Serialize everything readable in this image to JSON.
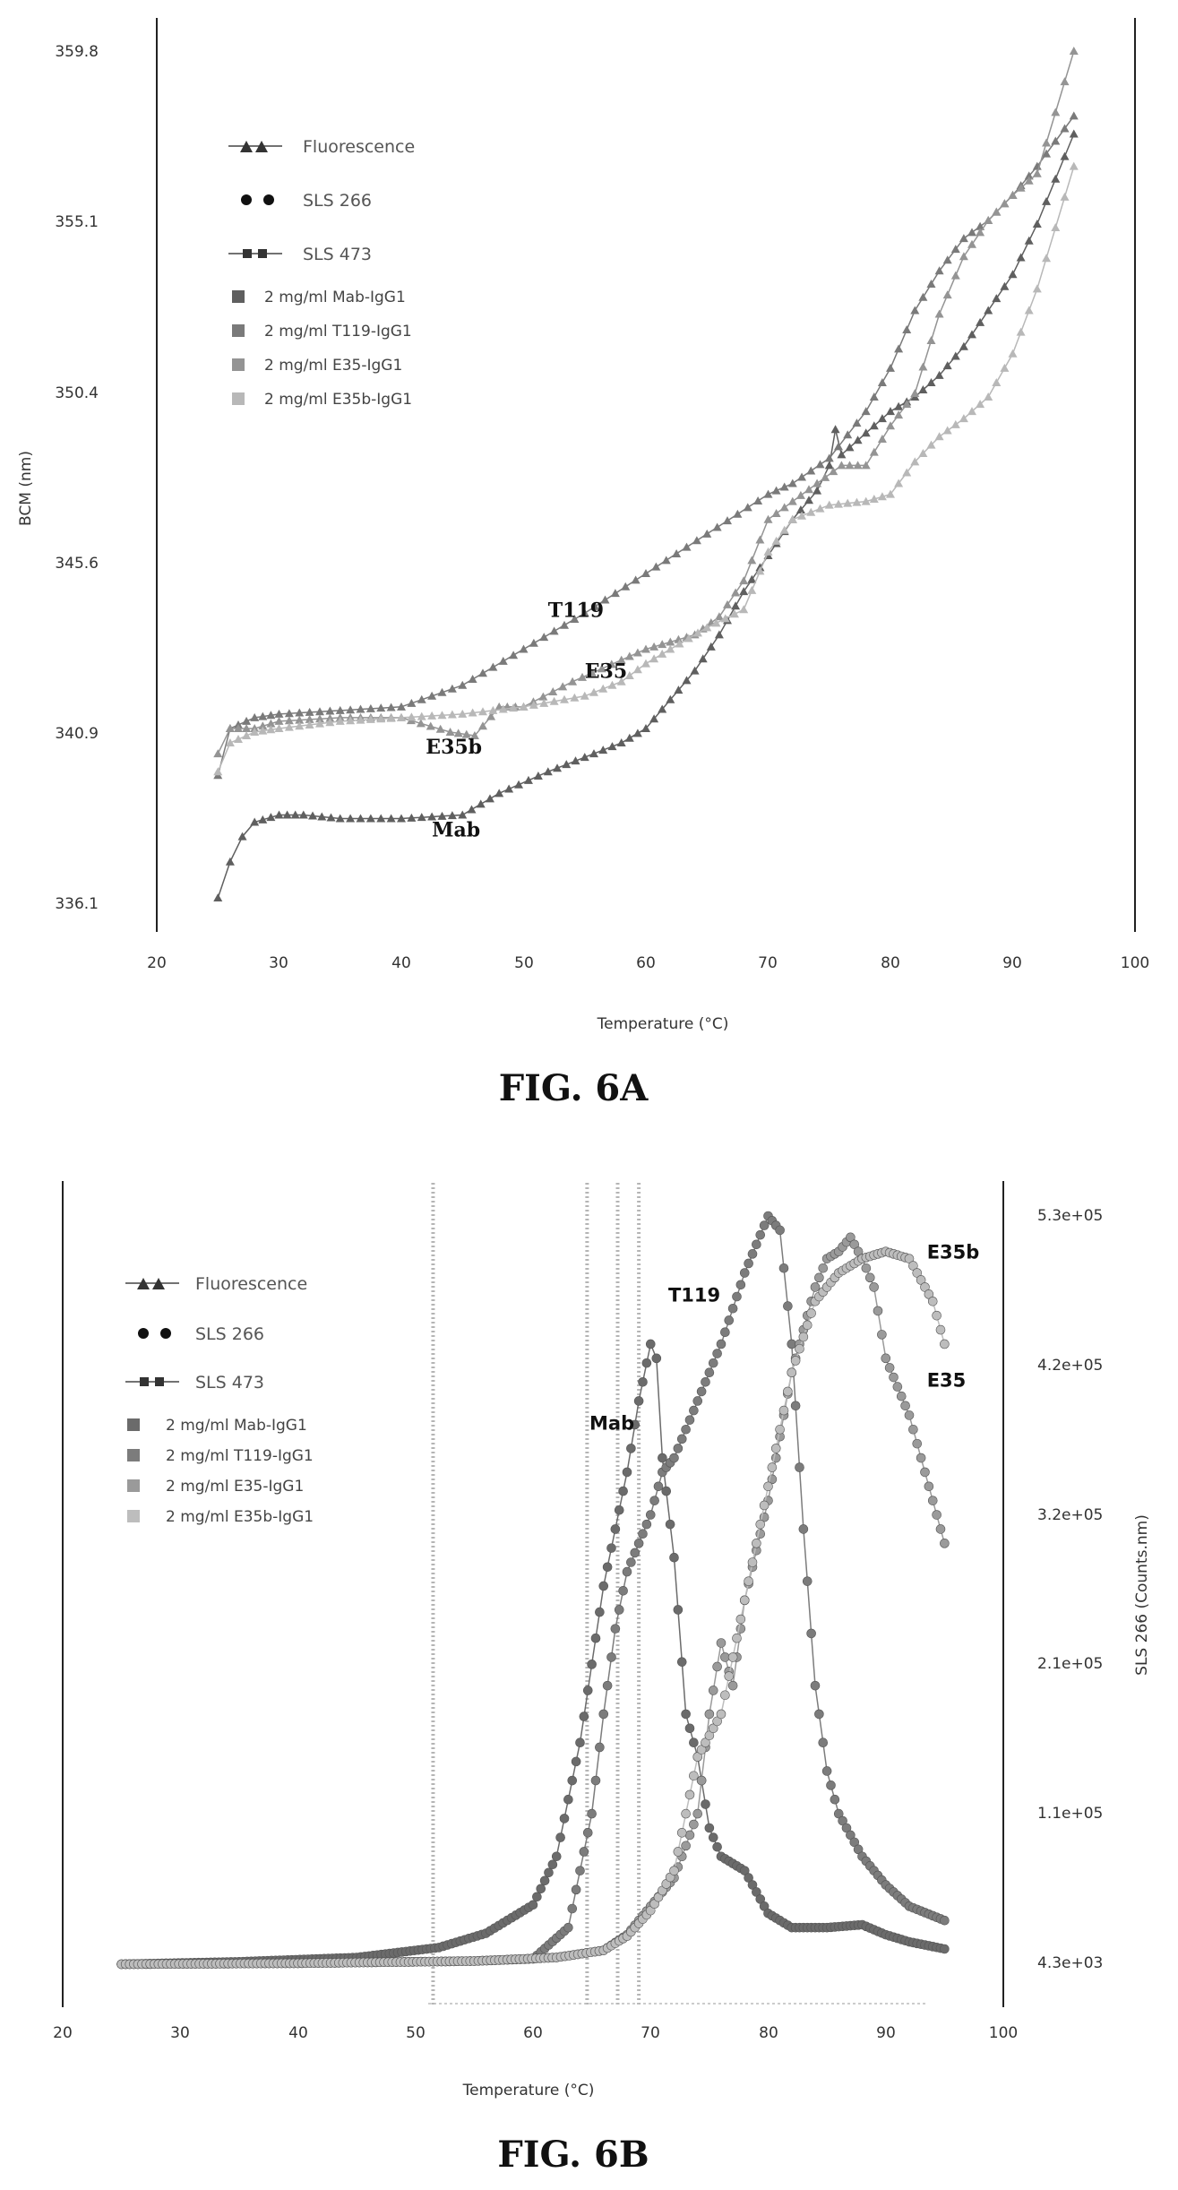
{
  "chart_data": [
    {
      "type": "scatter",
      "caption": "FIG. 6A",
      "xlabel": "Temperature (°C)",
      "ylabel": "BCM  (nm)",
      "xlim": [
        20,
        100
      ],
      "ylim": [
        336.1,
        359.8
      ],
      "xticks": [
        "20",
        "30",
        "40",
        "50",
        "60",
        "70",
        "80",
        "90",
        "100"
      ],
      "yticks": [
        "336.1",
        "340.9",
        "345.6",
        "350.4",
        "355.1",
        "359.8"
      ],
      "legend_placement": "top-left",
      "legend": {
        "markers": [
          "Fluorescence",
          "SLS 266",
          "SLS 473"
        ],
        "samples": [
          "2 mg/ml Mab-IgG1",
          "2 mg/ml T119-IgG1",
          "2 mg/ml E35-IgG1",
          "2 mg/ml E35b-IgG1"
        ]
      },
      "annotations": [
        {
          "text": "T119",
          "x": 52,
          "y": 344.1
        },
        {
          "text": "E35",
          "x": 55,
          "y": 342.4
        },
        {
          "text": "E35b",
          "x": 42,
          "y": 340.3
        },
        {
          "text": "Mab",
          "x": 42.5,
          "y": 338.0
        }
      ],
      "series": [
        {
          "name": "Mab",
          "color": "#5f5f5f",
          "x": [
            25,
            26,
            27,
            28,
            30,
            32,
            35,
            40,
            45,
            48,
            52,
            55,
            58,
            60,
            62,
            64,
            66,
            68,
            70,
            72,
            74,
            75,
            75.5,
            76,
            78,
            80,
            82,
            84,
            86,
            88,
            90,
            92,
            95
          ],
          "y": [
            336.3,
            337.3,
            338.0,
            338.4,
            338.6,
            338.6,
            338.5,
            338.5,
            338.6,
            339.2,
            339.8,
            340.2,
            340.6,
            341.0,
            341.8,
            342.6,
            343.6,
            344.8,
            345.8,
            346.8,
            347.6,
            348.3,
            349.3,
            348.6,
            349.2,
            349.8,
            350.2,
            350.8,
            351.6,
            352.6,
            353.6,
            355.0,
            357.5
          ]
        },
        {
          "name": "T119",
          "color": "#7a7a7a",
          "x": [
            25,
            26,
            28,
            30,
            35,
            40,
            45,
            50,
            55,
            60,
            65,
            70,
            72,
            75,
            78,
            80,
            82,
            84,
            86,
            88,
            90,
            92,
            95
          ],
          "y": [
            339.7,
            341.0,
            341.3,
            341.4,
            341.5,
            341.6,
            342.2,
            343.2,
            344.2,
            345.3,
            346.4,
            347.5,
            347.8,
            348.5,
            349.8,
            351.0,
            352.6,
            353.7,
            354.6,
            355.1,
            355.8,
            356.6,
            358.0
          ]
        },
        {
          "name": "E35",
          "color": "#949494",
          "x": [
            25,
            26,
            28,
            30,
            35,
            40,
            44,
            46,
            48,
            50,
            54,
            58,
            60,
            62,
            64,
            66,
            68,
            70,
            72,
            74,
            76,
            78,
            80,
            82,
            84,
            86,
            88,
            90,
            92,
            95
          ],
          "y": [
            340.3,
            341.0,
            341.0,
            341.2,
            341.3,
            341.3,
            340.9,
            340.8,
            341.6,
            341.6,
            342.3,
            342.9,
            343.2,
            343.4,
            343.6,
            344.1,
            345.1,
            346.8,
            347.3,
            347.8,
            348.3,
            348.3,
            349.4,
            350.3,
            352.5,
            354.1,
            355.1,
            355.8,
            356.4,
            359.8
          ]
        },
        {
          "name": "E35b",
          "color": "#b8b8b8",
          "x": [
            25,
            26,
            28,
            30,
            35,
            40,
            45,
            50,
            55,
            58,
            60,
            62,
            65,
            68,
            70,
            72,
            75,
            78,
            80,
            82,
            84,
            86,
            88,
            90,
            92,
            95
          ],
          "y": [
            339.8,
            340.6,
            340.9,
            341.0,
            341.2,
            341.3,
            341.4,
            341.6,
            341.9,
            342.3,
            342.8,
            343.2,
            343.8,
            344.3,
            345.9,
            346.8,
            347.2,
            347.3,
            347.5,
            348.4,
            349.1,
            349.6,
            350.2,
            351.4,
            353.2,
            356.6
          ]
        }
      ]
    },
    {
      "type": "scatter",
      "caption": "FIG. 6B",
      "xlabel": "Temperature (°C)",
      "ylabel": "SLS 266  (Counts.nm)",
      "xlim": [
        20,
        100
      ],
      "ylim": [
        4300,
        530000
      ],
      "xticks": [
        "20",
        "30",
        "40",
        "50",
        "60",
        "70",
        "80",
        "90",
        "100"
      ],
      "yticks": [
        "4.3e+03",
        "1.1e+05",
        "2.1e+05",
        "3.2e+05",
        "4.2e+05",
        "5.3e+05"
      ],
      "legend_placement": "top-left",
      "legend": {
        "markers": [
          "Fluorescence",
          "SLS 266",
          "SLS 473"
        ],
        "samples": [
          "2 mg/ml Mab-IgG1",
          "2 mg/ml T119-IgG1",
          "2 mg/ml E35-IgG1",
          "2 mg/ml E35b-IgG1"
        ]
      },
      "vlines": [
        51.5,
        64.6,
        67.2,
        69.0
      ],
      "annotations": [
        {
          "text": "T119",
          "x": 71.5,
          "y": 470000
        },
        {
          "text": "Mab",
          "x": 64.8,
          "y": 380000
        },
        {
          "text": "E35b",
          "x": 93.5,
          "y": 500000
        },
        {
          "text": "E35",
          "x": 93.5,
          "y": 410000
        }
      ],
      "series": [
        {
          "name": "Mab",
          "color": "#6b6b6b",
          "x": [
            25,
            35,
            45,
            52,
            56,
            60,
            62,
            64,
            66,
            67,
            68,
            69,
            70,
            70.5,
            71,
            72,
            73,
            74,
            75,
            76,
            77,
            78,
            79,
            80,
            82,
            85,
            88,
            90,
            92,
            95
          ],
          "y": [
            4300,
            6000,
            9000,
            16000,
            26000,
            46000,
            80000,
            160000,
            270000,
            310000,
            350000,
            400000,
            440000,
            430000,
            360000,
            290000,
            180000,
            150000,
            100000,
            80000,
            75000,
            70000,
            55000,
            40000,
            30000,
            30000,
            32000,
            25000,
            20000,
            15000
          ]
        },
        {
          "name": "T119",
          "color": "#7c7c7c",
          "x": [
            25,
            40,
            55,
            60,
            63,
            65,
            66,
            67,
            68,
            69,
            70,
            71,
            72,
            74,
            76,
            78,
            80,
            81,
            82,
            83,
            84,
            85,
            86,
            88,
            90,
            92,
            95
          ],
          "y": [
            4300,
            5000,
            6500,
            8000,
            30000,
            110000,
            180000,
            240000,
            280000,
            300000,
            320000,
            350000,
            360000,
            400000,
            440000,
            490000,
            530000,
            520000,
            440000,
            310000,
            200000,
            140000,
            110000,
            80000,
            60000,
            45000,
            35000
          ]
        },
        {
          "name": "E35",
          "color": "#9a9a9a",
          "x": [
            25,
            40,
            55,
            62,
            66,
            68,
            70,
            72,
            74,
            75,
            76,
            77,
            78,
            80,
            82,
            84,
            85,
            86,
            87,
            88,
            89,
            90,
            91,
            92,
            93,
            95
          ],
          "y": [
            4300,
            5000,
            6500,
            9000,
            14000,
            25000,
            45000,
            65000,
            110000,
            180000,
            230000,
            200000,
            260000,
            330000,
            420000,
            480000,
            500000,
            505000,
            515000,
            500000,
            480000,
            430000,
            410000,
            390000,
            360000,
            300000
          ]
        },
        {
          "name": "E35b",
          "color": "#bdbdbd",
          "x": [
            25,
            40,
            55,
            62,
            66,
            68,
            70,
            72,
            74,
            76,
            78,
            80,
            82,
            84,
            86,
            88,
            90,
            92,
            94,
            95
          ],
          "y": [
            4300,
            5000,
            6500,
            9000,
            14000,
            24000,
            42000,
            70000,
            150000,
            180000,
            260000,
            340000,
            420000,
            470000,
            490000,
            500000,
            505000,
            500000,
            470000,
            440000
          ]
        }
      ]
    }
  ]
}
